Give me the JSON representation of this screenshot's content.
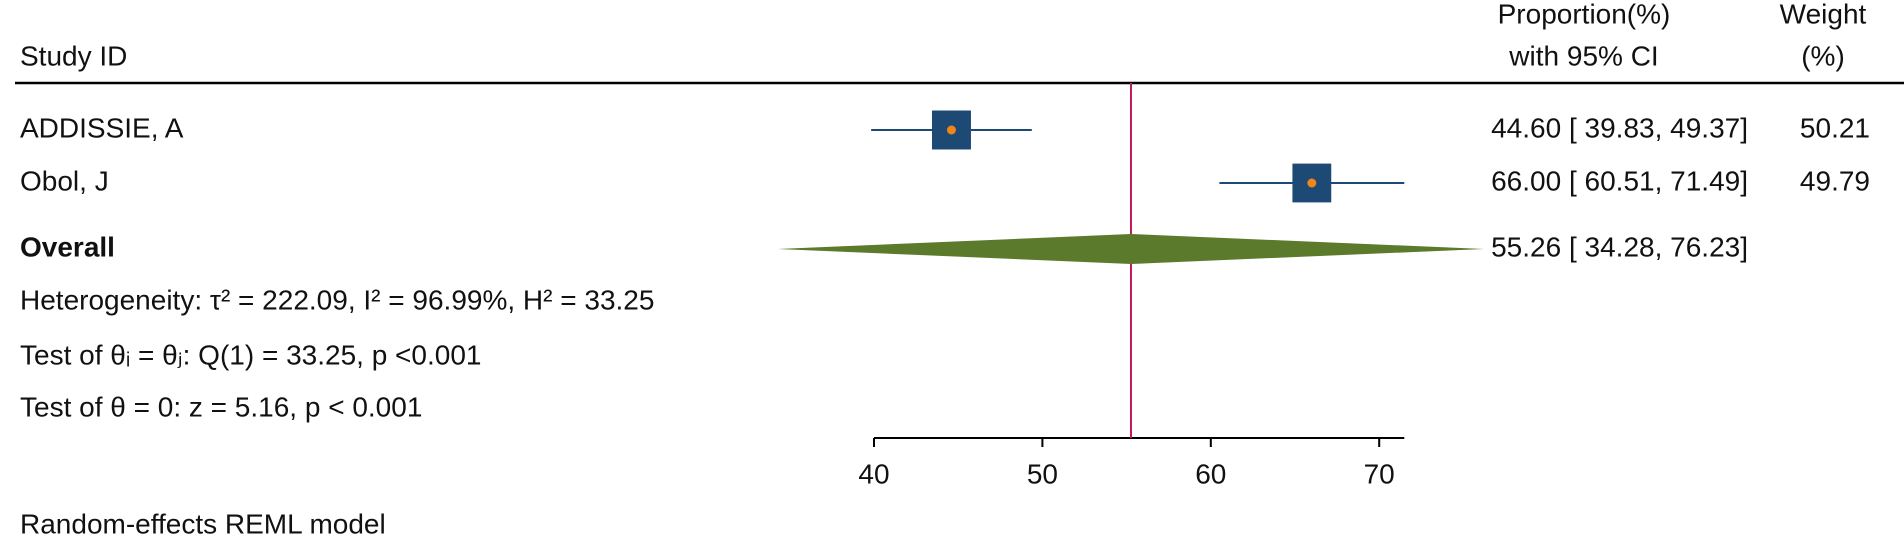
{
  "chart_data": {
    "type": "forest",
    "headers": {
      "study": "Study ID",
      "effect": [
        "Proportion(%)",
        "with 95% CI"
      ],
      "weight": [
        "Weight",
        "(%)"
      ]
    },
    "studies": [
      {
        "name": "ADDISSIE, A",
        "estimate": 44.6,
        "ci": [
          39.83,
          49.37
        ],
        "label": "44.60 [ 39.83,  49.37]",
        "weight": 50.21
      },
      {
        "name": "Obol, J",
        "estimate": 66.0,
        "ci": [
          60.51,
          71.49
        ],
        "label": "66.00 [ 60.51,  71.49]",
        "weight": 49.79
      }
    ],
    "overall": {
      "name": "Overall",
      "estimate": 55.26,
      "ci": [
        34.28,
        76.23
      ],
      "label": "55.26 [ 34.28,  76.23]"
    },
    "notes": [
      "Heterogeneity: τ² = 222.09, I² = 96.99%, H² = 33.25",
      "Test of θᵢ = θⱼ: Q(1) = 33.25, p <0.001",
      "Test of θ = 0: z = 5.16, p < 0.001"
    ],
    "footer": "Random-effects REML model",
    "xlim": [
      40,
      71.49
    ],
    "xticks": [
      40,
      50,
      60,
      70
    ],
    "colors": {
      "box": "#1c4a74",
      "dot": "#f0861a",
      "diamond": "#5b7a2c",
      "line": "#c2185b"
    }
  }
}
